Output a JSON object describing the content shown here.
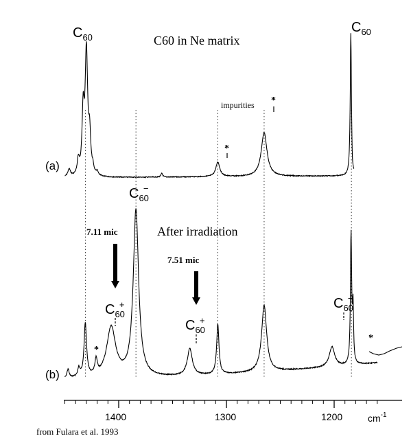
{
  "chart_data": {
    "type": "line",
    "title": "C60 in Ne matrix",
    "subtitle": "After irradiation",
    "xlabel": "cm-1",
    "xlabel_main": "cm",
    "xlabel_sup": "-1",
    "xlim": [
      1450,
      1155
    ],
    "x_ticks": [
      1400,
      1300,
      1200
    ],
    "x_tick_labels": [
      "1400",
      "1300",
      "1200"
    ],
    "source_note": "from Fulara et al. 1993",
    "series": [
      {
        "name": "(a)",
        "peaks": [
          {
            "x": 1446,
            "h": 0.06,
            "w": 1.5
          },
          {
            "x": 1437.5,
            "h": 0.12,
            "w": 1.2
          },
          {
            "x": 1433,
            "h": 0.5,
            "w": 1.2
          },
          {
            "x": 1430,
            "h": 1.0,
            "w": 1.4
          },
          {
            "x": 1427,
            "h": 0.3,
            "w": 1.2
          },
          {
            "x": 1424,
            "h": 0.05,
            "w": 1.0
          },
          {
            "x": 1420,
            "h": 0.03,
            "w": 1.0
          },
          {
            "x": 1360,
            "h": 0.03,
            "w": 1.0
          },
          {
            "x": 1308,
            "h": 0.12,
            "w": 2.2
          },
          {
            "x": 1265,
            "h": 0.36,
            "w": 3.2
          },
          {
            "x": 1184.5,
            "h": 1.18,
            "w": 0.7
          },
          {
            "x": 1183.2,
            "h": -0.07,
            "w": 0.7
          }
        ]
      },
      {
        "name": "(b)",
        "peaks": [
          {
            "x": 1447,
            "h": 0.05,
            "w": 1.2
          },
          {
            "x": 1437,
            "h": 0.05,
            "w": 1.2
          },
          {
            "x": 1431,
            "h": 0.32,
            "w": 1.4
          },
          {
            "x": 1421,
            "h": 0.09,
            "w": 1.3
          },
          {
            "x": 1407,
            "h": 0.3,
            "w": 5.0
          },
          {
            "x": 1384,
            "h": 1.0,
            "w": 3.0
          },
          {
            "x": 1334,
            "h": 0.16,
            "w": 2.8
          },
          {
            "x": 1308,
            "h": 0.3,
            "w": 1.3
          },
          {
            "x": 1265,
            "h": 0.4,
            "w": 2.8
          },
          {
            "x": 1202,
            "h": 0.12,
            "w": 3.0
          },
          {
            "x": 1184.3,
            "h": 0.78,
            "w": 0.7
          },
          {
            "x": 1182.5,
            "h": 0.32,
            "w": 0.6
          }
        ]
      }
    ],
    "trace_labels": [
      "(a)",
      "(b)"
    ],
    "peak_labels": {
      "c60": {
        "base": "C",
        "sub": "60"
      },
      "c60_minus": {
        "base": "C",
        "sub": "60",
        "sup": "−"
      },
      "c60_plus": {
        "base": "C",
        "sub": "60",
        "sup": "+"
      }
    },
    "annotations": {
      "impurities": "impurities",
      "star": "*",
      "mic1": "7.11 mic",
      "mic2": "7.51 mic"
    }
  }
}
